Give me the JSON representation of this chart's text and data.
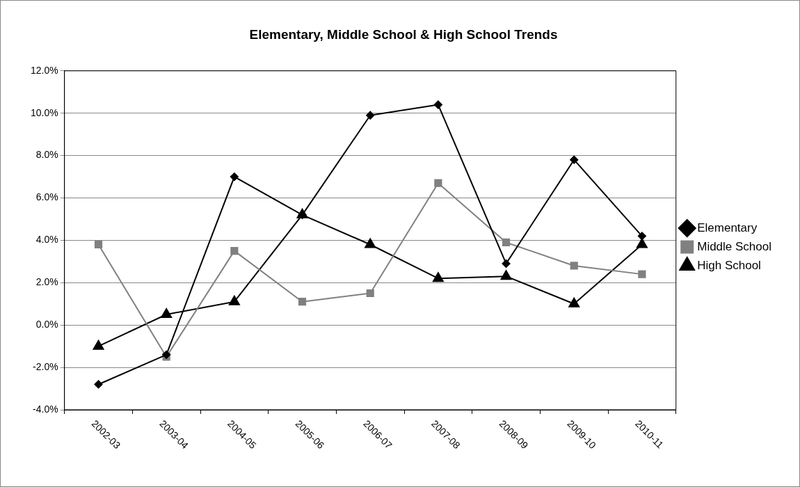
{
  "chart_data": {
    "type": "line",
    "title": "Elementary, Middle School & High School Trends",
    "categories": [
      "2002-03",
      "2003-04",
      "2004-05",
      "2005-06",
      "2006-07",
      "2007-08",
      "2008-09",
      "2009-10",
      "2010-11"
    ],
    "series": [
      {
        "name": "Elementary",
        "color": "#000000",
        "marker": "diamond",
        "values": [
          -2.8,
          -1.4,
          7.0,
          5.2,
          9.9,
          10.4,
          2.9,
          7.8,
          4.2
        ]
      },
      {
        "name": "Middle School",
        "color": "#808080",
        "marker": "square",
        "values": [
          3.8,
          -1.5,
          3.5,
          1.1,
          1.5,
          6.7,
          3.9,
          2.8,
          2.4
        ]
      },
      {
        "name": "High School",
        "color": "#000000",
        "marker": "triangle",
        "values": [
          -1.0,
          0.5,
          1.1,
          5.2,
          3.8,
          2.2,
          2.3,
          1.0,
          3.8
        ]
      }
    ],
    "ylim": [
      -4,
      12
    ],
    "yticks": [
      {
        "value": -4,
        "label": "-4.0%"
      },
      {
        "value": -2,
        "label": "-2.0%"
      },
      {
        "value": 0,
        "label": "0.0%"
      },
      {
        "value": 2,
        "label": "2.0%"
      },
      {
        "value": 4,
        "label": "4.0%"
      },
      {
        "value": 6,
        "label": "6.0%"
      },
      {
        "value": 8,
        "label": "8.0%"
      },
      {
        "value": 10,
        "label": "10.0%"
      },
      {
        "value": 12,
        "label": "12.0%"
      }
    ],
    "grid": "y",
    "legend": "right",
    "line_style": "solid"
  }
}
